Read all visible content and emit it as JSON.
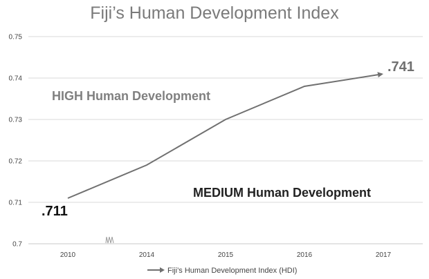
{
  "chart_data": {
    "type": "line",
    "title": "Fiji’s Human Development Index",
    "categories": [
      "2010",
      "2014",
      "2015",
      "2016",
      "2017"
    ],
    "series": [
      {
        "name": "Fiji’s Human Development Index (HDI)",
        "values": [
          0.711,
          0.719,
          0.73,
          0.738,
          0.741
        ],
        "color": "#707070"
      }
    ],
    "ylim": [
      0.7,
      0.75
    ],
    "yticks": [
      "0.7",
      "0.71",
      "0.72",
      "0.73",
      "0.74",
      "0.75"
    ],
    "grid": true,
    "legend": "bottom-center",
    "annotations": {
      "start_value": ".711",
      "end_value": ".741",
      "high_region": "HIGH Human Development",
      "medium_region": "MEDIUM Human Development"
    },
    "colors": {
      "start_value": "#111111",
      "end_value": "#707070",
      "high_region": "#808080",
      "medium_region": "#222222"
    }
  }
}
